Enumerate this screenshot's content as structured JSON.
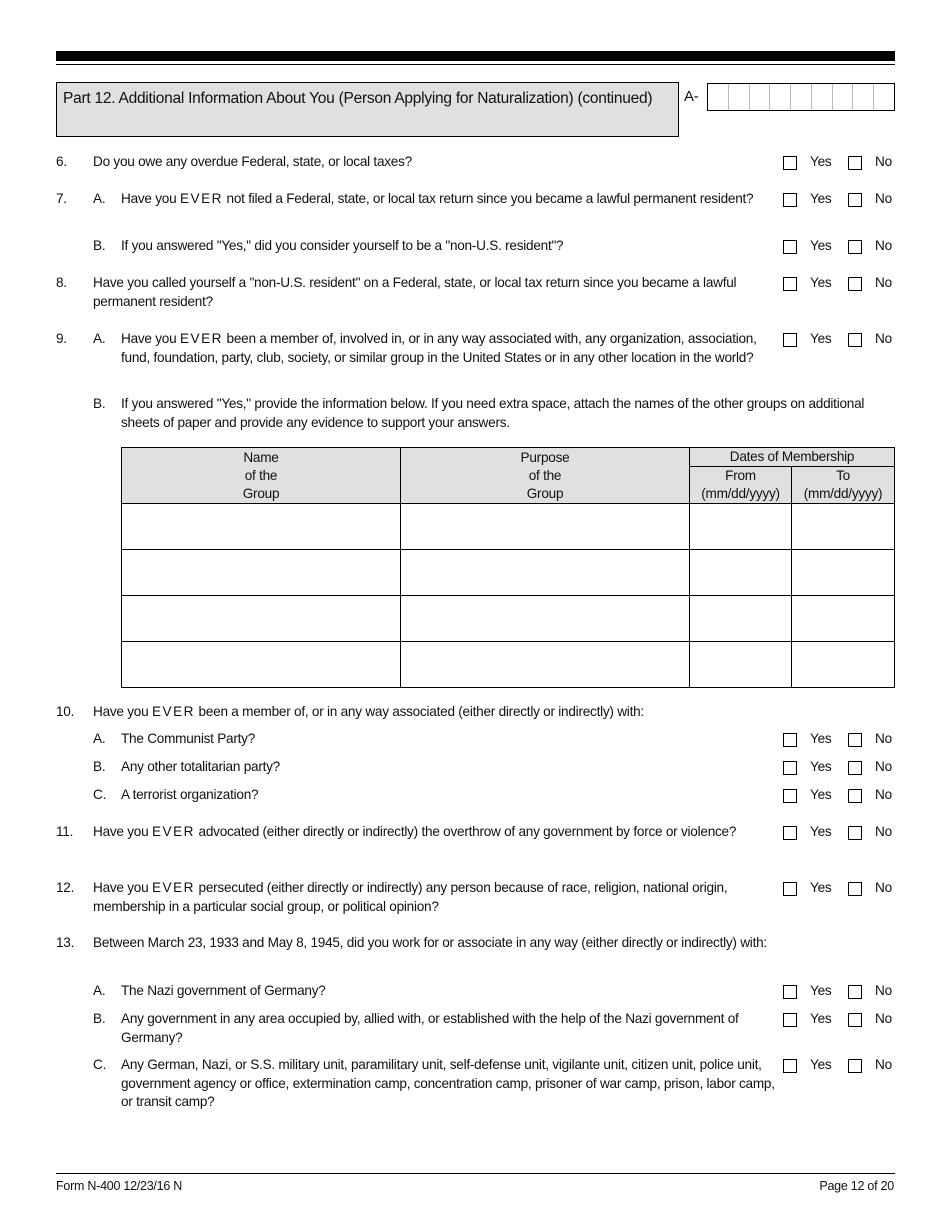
{
  "header": {
    "part_title": "Part 12.  Additional Information About You (Person Applying for Naturalization) (continued)",
    "a_number_label": "A-"
  },
  "options": {
    "yes": "Yes",
    "no": "No"
  },
  "questions": [
    {
      "num": "6.",
      "label": "",
      "pre": "Do you owe any overdue Federal, state, or local taxes?",
      "ever": "",
      "post": "",
      "yesno": true
    },
    {
      "num": "7.",
      "label": "A.",
      "pre": "Have you ",
      "ever": "EVER",
      "post": " not filed a Federal, state, or local tax return since you became a lawful permanent resident?",
      "yesno": true
    },
    {
      "num": "",
      "label": "B.",
      "pre": "If you answered \"Yes,\" did you consider yourself to be a \"non-U.S. resident\"?",
      "ever": "",
      "post": "",
      "yesno": true
    },
    {
      "num": "8.",
      "label": "",
      "pre": "Have you called yourself a \"non-U.S. resident\" on a Federal, state, or local tax return since you became a lawful permanent resident?",
      "ever": "",
      "post": "",
      "yesno": true
    },
    {
      "num": "9.",
      "label": "A.",
      "pre": "Have you ",
      "ever": "EVER",
      "post": " been a member of, involved in, or in any way associated with, any organization, association, fund, foundation, party, club, society, or similar group in the United States or in any other location in the world?",
      "yesno": true
    },
    {
      "num": "",
      "label": "B.",
      "pre": "If you answered \"Yes,\" provide the information below.  If you need extra space, attach the names of the other groups on additional sheets of paper and provide any evidence to support your answers.",
      "ever": "",
      "post": "",
      "yesno": false
    },
    {
      "num": "10.",
      "label": "",
      "pre": "Have you ",
      "ever": "EVER",
      "post": " been a member of, or in any way associated (either directly or indirectly) with:",
      "yesno": false
    },
    {
      "num": "",
      "label": "A.",
      "pre": "The Communist Party?",
      "ever": "",
      "post": "",
      "yesno": true
    },
    {
      "num": "",
      "label": "B.",
      "pre": "Any other totalitarian party?",
      "ever": "",
      "post": "",
      "yesno": true
    },
    {
      "num": "",
      "label": "C.",
      "pre": "A terrorist organization?",
      "ever": "",
      "post": "",
      "yesno": true
    },
    {
      "num": "11.",
      "label": "",
      "pre": "Have you ",
      "ever": "EVER",
      "post": " advocated (either directly or indirectly) the overthrow of any government by force or violence?",
      "yesno": true
    },
    {
      "num": "12.",
      "label": "",
      "pre": "Have you ",
      "ever": "EVER",
      "post": " persecuted (either directly or indirectly) any person because of race, religion, national origin, membership in a particular social group, or political opinion?",
      "yesno": true
    },
    {
      "num": "13.",
      "label": "",
      "pre": "Between March 23, 1933 and May 8, 1945, did you work for or associate in any way (either directly or indirectly) with:",
      "ever": "",
      "post": "",
      "yesno": false
    },
    {
      "num": "",
      "label": "A.",
      "pre": "The Nazi government of Germany?",
      "ever": "",
      "post": "",
      "yesno": true
    },
    {
      "num": "",
      "label": "B.",
      "pre": "Any government in any area occupied by, allied with, or established with the help of the Nazi government of Germany?",
      "ever": "",
      "post": "",
      "yesno": true
    },
    {
      "num": "",
      "label": "C.",
      "pre": "Any German, Nazi, or S.S. military unit, paramilitary unit, self-defense unit, vigilante unit, citizen unit, police unit, government agency or office, extermination camp, concentration camp, prisoner of war camp, prison, labor camp, or transit camp?",
      "ever": "",
      "post": "",
      "yesno": true
    }
  ],
  "table": {
    "name_header": [
      "Name",
      "of the",
      "Group"
    ],
    "purpose_header": [
      "Purpose",
      "of the",
      "Group"
    ],
    "dates_header": "Dates of Membership",
    "from_header": [
      "From",
      "(mm/dd/yyyy)"
    ],
    "to_header": [
      "To",
      "(mm/dd/yyyy)"
    ],
    "rows": [
      [
        "",
        "",
        "",
        ""
      ],
      [
        "",
        "",
        "",
        ""
      ],
      [
        "",
        "",
        "",
        ""
      ],
      [
        "",
        "",
        "",
        ""
      ]
    ]
  },
  "footer": {
    "form_id": "Form N-400   12/23/16   N",
    "page": "Page 12 of 20"
  }
}
